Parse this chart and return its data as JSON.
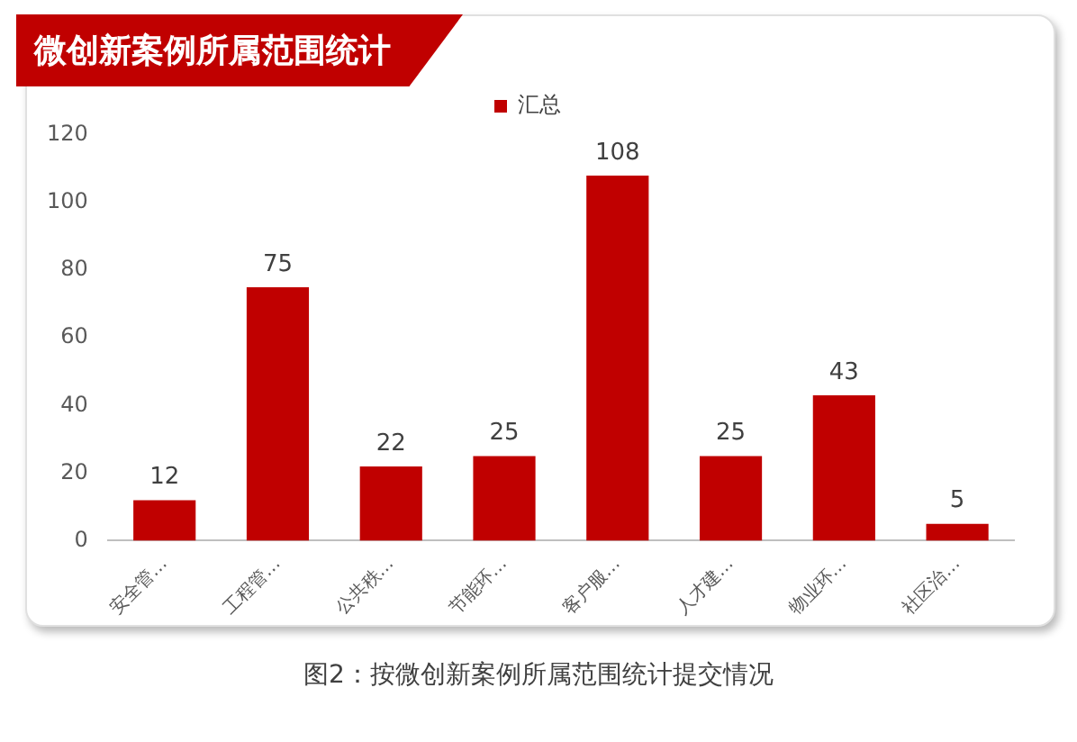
{
  "chart_data": {
    "type": "bar",
    "title": "微创新案例所属范围统计",
    "categories": [
      "安全管…",
      "工程管…",
      "公共秩…",
      "节能环…",
      "客户服…",
      "人才建…",
      "物业环…",
      "社区治…"
    ],
    "series": [
      {
        "name": "汇总",
        "color": "#c00000",
        "values": [
          12,
          75,
          22,
          25,
          108,
          25,
          43,
          5
        ]
      }
    ],
    "ylim": [
      0,
      120
    ],
    "yticks": [
      0,
      20,
      40,
      60,
      80,
      100,
      120
    ],
    "grid": false,
    "legend": "top",
    "data_labels": true,
    "annotations": [
      "图2：按微创新案例所属范围统计提交情况"
    ]
  }
}
